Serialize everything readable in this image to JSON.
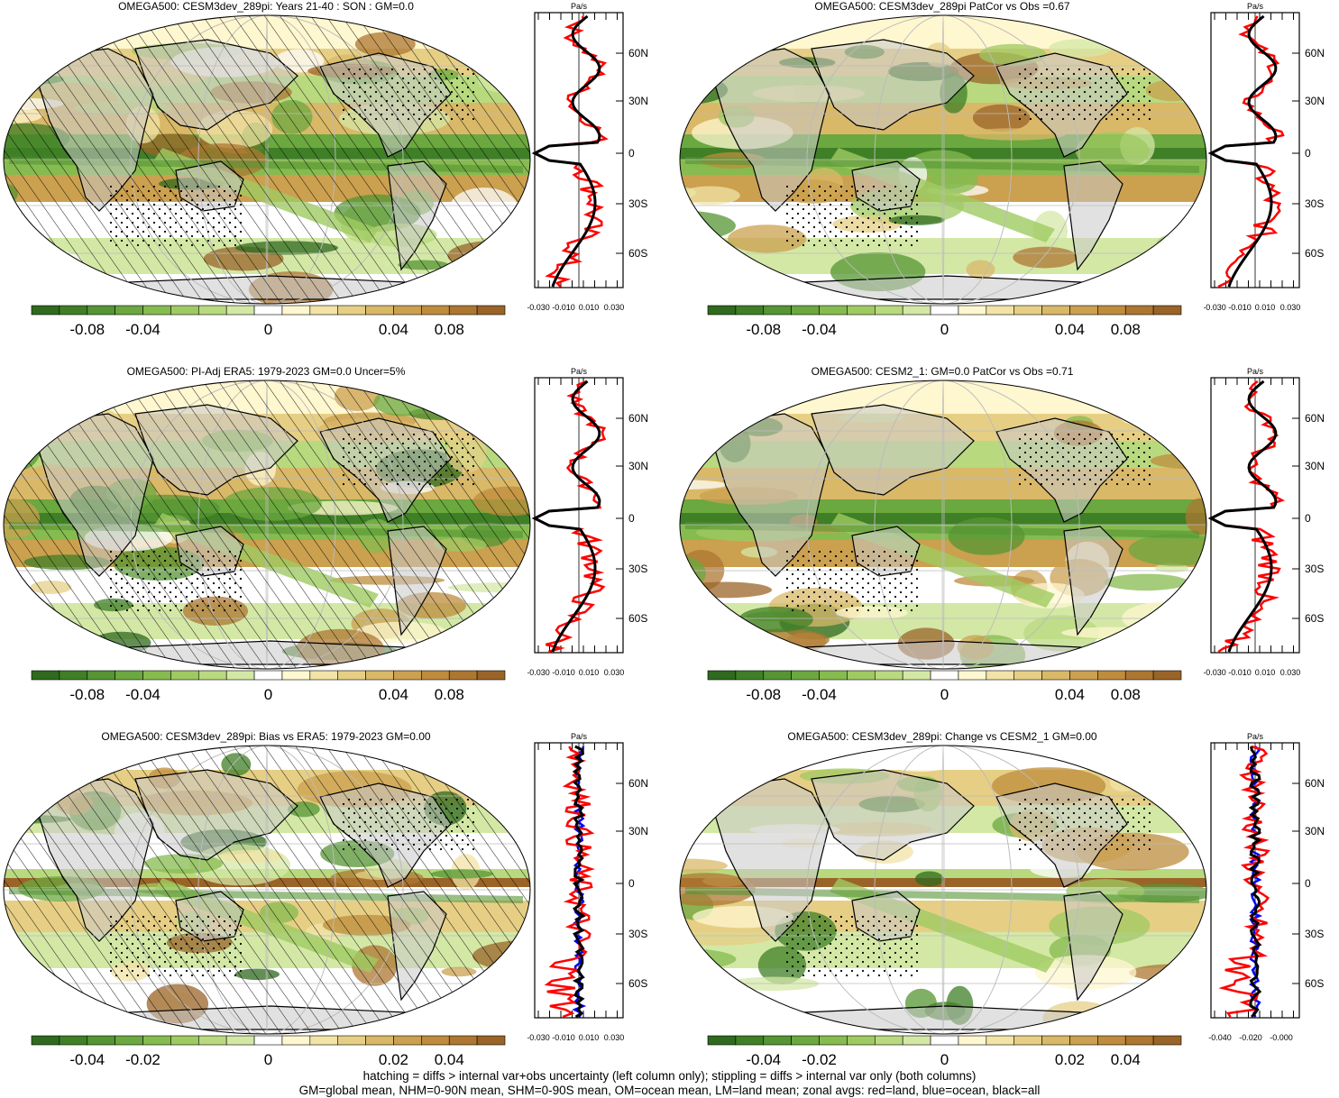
{
  "panels": [
    {
      "title": "OMEGA500: CESM3dev_289pi: Years 21-40 : SON : GM=0.0",
      "colorbar_labels": [
        "-0.08",
        "-0.04",
        "0",
        "0.04",
        "0.08"
      ],
      "zonal_unit": "Pa/s",
      "zonal_xticks": [
        "-0.030",
        "-0.010",
        "0.010",
        "0.030"
      ],
      "lat_labels": [
        "60N",
        "30N",
        "0",
        "30S",
        "60S"
      ],
      "hatched": true
    },
    {
      "title": "OMEGA500: CESM3dev_289pi PatCor vs Obs =0.67",
      "colorbar_labels": [
        "-0.08",
        "-0.04",
        "0",
        "0.04",
        "0.08"
      ],
      "zonal_unit": "Pa/s",
      "zonal_xticks": [
        "-0.030",
        "-0.010",
        "0.010",
        "0.030"
      ],
      "lat_labels": [
        "60N",
        "30N",
        "0",
        "30S",
        "60S"
      ],
      "hatched": false
    },
    {
      "title": "OMEGA500: PI-Adj ERA5: 1979-2023 GM=0.0 Uncer=5%",
      "colorbar_labels": [
        "-0.08",
        "-0.04",
        "0",
        "0.04",
        "0.08"
      ],
      "zonal_unit": "Pa/s",
      "zonal_xticks": [
        "-0.030",
        "-0.010",
        "0.010",
        "0.030"
      ],
      "lat_labels": [
        "60N",
        "30N",
        "0",
        "30S",
        "60S"
      ],
      "hatched": true
    },
    {
      "title": "OMEGA500: CESM2_1: GM=0.0 PatCor vs Obs =0.71",
      "colorbar_labels": [
        "-0.08",
        "-0.04",
        "0",
        "0.04",
        "0.08"
      ],
      "zonal_unit": "Pa/s",
      "zonal_xticks": [
        "-0.030",
        "-0.010",
        "0.010",
        "0.030"
      ],
      "lat_labels": [
        "60N",
        "30N",
        "0",
        "30S",
        "60S"
      ],
      "hatched": false
    },
    {
      "title": "OMEGA500: CESM3dev_289pi: Bias vs ERA5: 1979-2023  GM=0.00",
      "colorbar_labels": [
        "-0.04",
        "-0.02",
        "0",
        "0.02",
        "0.04"
      ],
      "zonal_unit": "Pa/s",
      "zonal_xticks": [
        "-0.030",
        "-0.010",
        "0.010",
        "0.030"
      ],
      "lat_labels": [
        "60N",
        "30N",
        "0",
        "30S",
        "60S"
      ],
      "hatched": true
    },
    {
      "title": "OMEGA500: CESM3dev_289pi: Change vs CESM2_1 GM=0.00",
      "colorbar_labels": [
        "-0.04",
        "-0.02",
        "0",
        "0.02",
        "0.04"
      ],
      "zonal_unit": "Pa/s",
      "zonal_xticks": [
        "-0.040",
        "-0.020",
        "-0.000"
      ],
      "lat_labels": [
        "60N",
        "30N",
        "0",
        "30S",
        "60S"
      ],
      "hatched": false
    }
  ],
  "colors": {
    "palette": [
      "#2f6a1e",
      "#3f7f26",
      "#559533",
      "#6ba83f",
      "#86bb4f",
      "#9fca62",
      "#b9d97f",
      "#d4e8a6",
      "#ffffff",
      "#fff7d0",
      "#f2e3a6",
      "#e6cf85",
      "#d9b868",
      "#cba04f",
      "#be8c3c",
      "#ad7731",
      "#9a6428"
    ],
    "land_gray": "#c8c8c8",
    "zonal_land": "#ff0000",
    "zonal_ocean": "#0000ff",
    "zonal_all": "#000000"
  },
  "footer": {
    "line1": "hatching = diffs > internal var+obs uncertainty (left column only); stippling = diffs > internal var only (both columns)",
    "line2": "GM=global mean, NHM=0-90N mean, SHM=0-90S mean, OM=ocean mean, LM=land mean; zonal avgs: red=land, blue=ocean, black=all"
  }
}
